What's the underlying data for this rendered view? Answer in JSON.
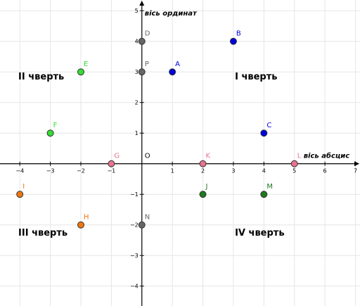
{
  "axes": {
    "x_title": "вісь абсцис",
    "y_title": "вісь ординат",
    "x_range": [
      -4.65,
      7.15
    ],
    "y_range": [
      -4.65,
      5.35
    ],
    "x_ticks": [
      -4,
      -3,
      -2,
      -1,
      1,
      2,
      3,
      4,
      5,
      6,
      7
    ],
    "y_ticks": [
      -4,
      -3,
      -2,
      -1,
      1,
      2,
      3,
      4,
      5
    ],
    "grid": true
  },
  "quadrants": [
    {
      "name": "I чверть",
      "x": 3.05,
      "y": 2.75
    },
    {
      "name": "II чверть",
      "x": -4.05,
      "y": 2.75
    },
    {
      "name": "III чверть",
      "x": -4.05,
      "y": -2.35
    },
    {
      "name": "IV чверть",
      "x": 3.05,
      "y": -2.35
    }
  ],
  "points": [
    {
      "label": "O",
      "x": 0,
      "y": 0,
      "color": "#000000",
      "marker": false
    },
    {
      "label": "A",
      "x": 1,
      "y": 3,
      "color": "#0000dd",
      "marker": true
    },
    {
      "label": "B",
      "x": 3,
      "y": 4,
      "color": "#0000dd",
      "marker": true
    },
    {
      "label": "C",
      "x": 4,
      "y": 1,
      "color": "#0000dd",
      "marker": true
    },
    {
      "label": "D",
      "x": 0,
      "y": 4,
      "color": "#666666",
      "marker": true
    },
    {
      "label": "P",
      "x": 0,
      "y": 3,
      "color": "#666666",
      "marker": true
    },
    {
      "label": "N",
      "x": 0,
      "y": -2,
      "color": "#666666",
      "marker": true
    },
    {
      "label": "E",
      "x": -2,
      "y": 3,
      "color": "#33dd33",
      "marker": true
    },
    {
      "label": "F",
      "x": -3,
      "y": 1,
      "color": "#33dd33",
      "marker": true
    },
    {
      "label": "G",
      "x": -1,
      "y": 0,
      "color": "#e8738f",
      "marker": true
    },
    {
      "label": "K",
      "x": 2,
      "y": 0,
      "color": "#e8738f",
      "marker": true
    },
    {
      "label": "L",
      "x": 5,
      "y": 0,
      "color": "#e8738f",
      "marker": true
    },
    {
      "label": "I",
      "x": -4,
      "y": -1,
      "color": "#ee7711",
      "marker": true
    },
    {
      "label": "H",
      "x": -2,
      "y": -2,
      "color": "#ee7711",
      "marker": true
    },
    {
      "label": "J",
      "x": 2,
      "y": -1,
      "color": "#1e7a1e",
      "marker": true
    },
    {
      "label": "M",
      "x": 4,
      "y": -1,
      "color": "#1e7a1e",
      "marker": true
    }
  ]
}
